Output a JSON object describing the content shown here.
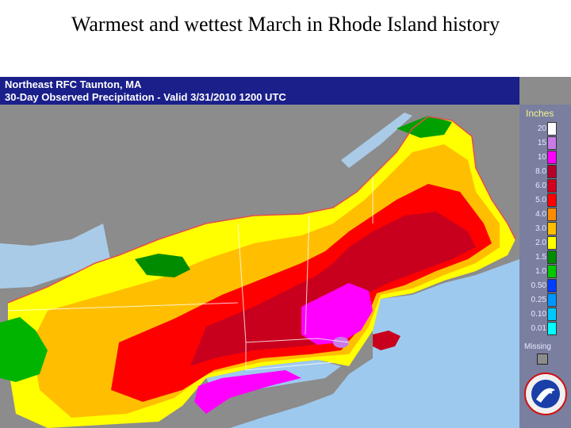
{
  "slide": {
    "title": "Warmest and wettest March in Rhode Island history"
  },
  "map": {
    "header_line1": "Northeast RFC Taunton, MA",
    "header_line2": "30-Day Observed Precipitation - Valid 3/31/2010 1200 UTC",
    "colors": {
      "land_gray": "#8c8c8c",
      "ocean": "#9ec9ee",
      "header_bg": "#1a1f8a",
      "legend_bg": "#7a7fa0"
    }
  },
  "legend": {
    "title": "Inches",
    "items": [
      {
        "label": "20",
        "color": "#ffffff"
      },
      {
        "label": "15",
        "color": "#c97ae6"
      },
      {
        "label": "10",
        "color": "#ff00ff"
      },
      {
        "label": "8.0",
        "color": "#b5002a"
      },
      {
        "label": "6.0",
        "color": "#d4001c"
      },
      {
        "label": "5.0",
        "color": "#ff0000"
      },
      {
        "label": "4.0",
        "color": "#ff8c00"
      },
      {
        "label": "3.0",
        "color": "#ffbf00"
      },
      {
        "label": "2.0",
        "color": "#ffff00"
      },
      {
        "label": "1.5",
        "color": "#008c00"
      },
      {
        "label": "1.0",
        "color": "#00c800"
      },
      {
        "label": "0.50",
        "color": "#003dff"
      },
      {
        "label": "0.25",
        "color": "#0096ff"
      },
      {
        "label": "0.10",
        "color": "#00c8ff"
      },
      {
        "label": "0.01",
        "color": "#00ffff"
      }
    ],
    "missing_label": "Missing",
    "logo_icon": "noaa-nws-logo-icon"
  }
}
